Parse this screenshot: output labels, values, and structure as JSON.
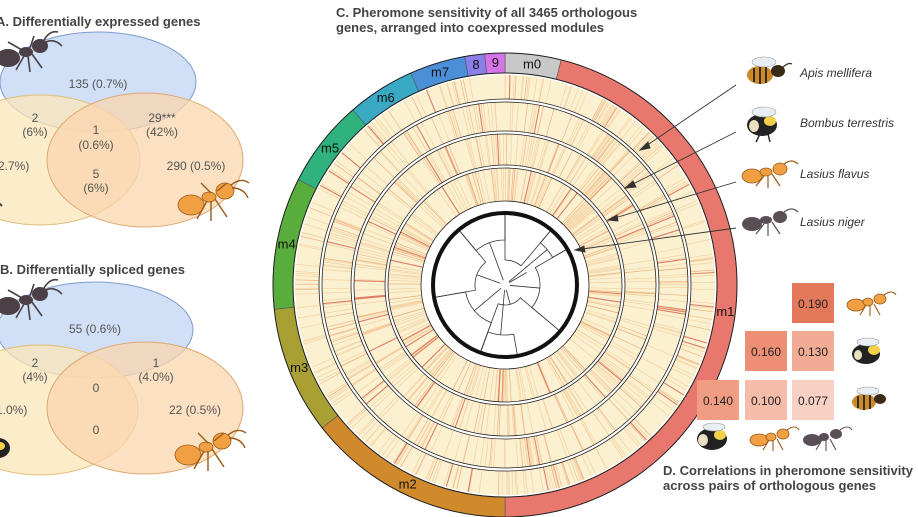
{
  "panel_a": {
    "title": "A. Differentially expressed genes",
    "regions": {
      "top_only": "135 (0.7%)",
      "top_left": "2",
      "top_left_pct": "(6%)",
      "center": "1",
      "center_pct": "(0.6%)",
      "top_right": "29***",
      "top_right_pct": "(42%)",
      "left_only": "2.7%)",
      "bottom_center": "5",
      "bottom_center_pct": "(6%)",
      "right_only": "290 (0.5%)"
    }
  },
  "panel_b": {
    "title": "B. Differentially spliced genes",
    "regions": {
      "top_only": "55 (0.6%)",
      "top_left": "2",
      "top_left_pct": "(4%)",
      "center": "0",
      "top_right": "1",
      "top_right_pct": "(4.0%)",
      "left_only": "1.0%)",
      "bottom_center": "0",
      "right_only": "22 (0.5%)"
    }
  },
  "panel_c": {
    "title_line1": "C. Pheromone sensitivity of all 3465 orthologous",
    "title_line2": "genes, arranged into coexpressed modules",
    "modules": [
      {
        "label": "m0",
        "color": "#c8c8c8",
        "start": 0,
        "end": 14
      },
      {
        "label": "m1",
        "color": "#e8776d",
        "start": 14,
        "end": 180
      },
      {
        "label": "m2",
        "color": "#d08a2c",
        "start": 180,
        "end": 232
      },
      {
        "label": "m3",
        "color": "#a9a033",
        "start": 232,
        "end": 264
      },
      {
        "label": "m4",
        "color": "#58ad3c",
        "start": 264,
        "end": 297
      },
      {
        "label": "m5",
        "color": "#2fb27d",
        "start": 297,
        "end": 319
      },
      {
        "label": "m6",
        "color": "#3aaac4",
        "start": 319,
        "end": 336
      },
      {
        "label": "m7",
        "color": "#4b8fd8",
        "start": 336,
        "end": 350
      },
      {
        "label": "8",
        "color": "#8a7fe8",
        "start": 350,
        "end": 355
      },
      {
        "label": "9",
        "color": "#d474e6",
        "start": 355,
        "end": 360
      }
    ],
    "species": [
      {
        "name": "Apis mellifera",
        "icon": "bee-icon"
      },
      {
        "name": "Bombus terrestris",
        "icon": "bumblebee-icon"
      },
      {
        "name": "Lasius flavus",
        "icon": "yellow-ant-icon"
      },
      {
        "name": "Lasius niger",
        "icon": "black-ant-icon"
      }
    ]
  },
  "panel_d": {
    "title_line1": "D. Correlations in pheromone sensitivity",
    "title_line2": "across pairs of orthologous genes",
    "cells": [
      {
        "value": "0.190",
        "color": "#e4785a"
      },
      {
        "value": "0.160",
        "color": "#ec8f74"
      },
      {
        "value": "0.130",
        "color": "#f2ac96"
      },
      {
        "value": "0.140",
        "color": "#f09d84"
      },
      {
        "value": "0.100",
        "color": "#f5bca9"
      },
      {
        "value": "0.077",
        "color": "#f8d1c4"
      }
    ]
  }
}
